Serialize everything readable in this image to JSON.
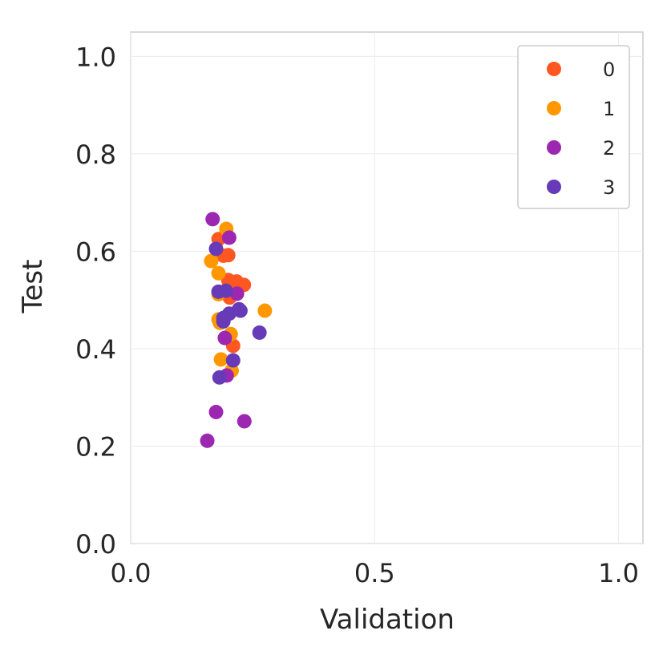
{
  "chart_data": {
    "type": "scatter",
    "title": "",
    "xlabel": "Validation",
    "ylabel": "Test",
    "xlim": [
      0.0,
      1.05
    ],
    "ylim": [
      0.0,
      1.05
    ],
    "xticks": [
      0.0,
      0.5,
      1.0
    ],
    "xtick_labels": [
      "0.0",
      "0.5",
      "1.0"
    ],
    "yticks": [
      0.0,
      0.2,
      0.4,
      0.6,
      0.8,
      1.0
    ],
    "ytick_labels": [
      "0.0",
      "0.2",
      "0.4",
      "0.6",
      "0.8",
      "1.0"
    ],
    "grid": true,
    "legend_position": "top-right",
    "series": [
      {
        "name": "0",
        "color": "#FF5722",
        "points": [
          {
            "x": 0.18,
            "y": 0.625
          },
          {
            "x": 0.2,
            "y": 0.592
          },
          {
            "x": 0.19,
            "y": 0.591
          },
          {
            "x": 0.2,
            "y": 0.541
          },
          {
            "x": 0.217,
            "y": 0.538
          },
          {
            "x": 0.232,
            "y": 0.531
          },
          {
            "x": 0.2,
            "y": 0.515
          },
          {
            "x": 0.203,
            "y": 0.505
          },
          {
            "x": 0.21,
            "y": 0.406
          }
        ]
      },
      {
        "name": "1",
        "color": "#FF9800",
        "points": [
          {
            "x": 0.196,
            "y": 0.646
          },
          {
            "x": 0.165,
            "y": 0.58
          },
          {
            "x": 0.18,
            "y": 0.555
          },
          {
            "x": 0.18,
            "y": 0.512
          },
          {
            "x": 0.275,
            "y": 0.478
          },
          {
            "x": 0.18,
            "y": 0.46
          },
          {
            "x": 0.183,
            "y": 0.453
          },
          {
            "x": 0.205,
            "y": 0.43
          },
          {
            "x": 0.185,
            "y": 0.378
          },
          {
            "x": 0.207,
            "y": 0.355
          }
        ]
      },
      {
        "name": "2",
        "color": "#9C27B0",
        "points": [
          {
            "x": 0.168,
            "y": 0.666
          },
          {
            "x": 0.202,
            "y": 0.628
          },
          {
            "x": 0.218,
            "y": 0.513
          },
          {
            "x": 0.193,
            "y": 0.422
          },
          {
            "x": 0.197,
            "y": 0.345
          },
          {
            "x": 0.175,
            "y": 0.27
          },
          {
            "x": 0.233,
            "y": 0.251
          },
          {
            "x": 0.157,
            "y": 0.211
          }
        ]
      },
      {
        "name": "3",
        "color": "#673AB7",
        "points": [
          {
            "x": 0.175,
            "y": 0.605
          },
          {
            "x": 0.18,
            "y": 0.517
          },
          {
            "x": 0.195,
            "y": 0.519
          },
          {
            "x": 0.222,
            "y": 0.481
          },
          {
            "x": 0.225,
            "y": 0.478
          },
          {
            "x": 0.202,
            "y": 0.472
          },
          {
            "x": 0.19,
            "y": 0.463
          },
          {
            "x": 0.19,
            "y": 0.456
          },
          {
            "x": 0.264,
            "y": 0.433
          },
          {
            "x": 0.21,
            "y": 0.376
          },
          {
            "x": 0.182,
            "y": 0.341
          }
        ]
      }
    ]
  }
}
